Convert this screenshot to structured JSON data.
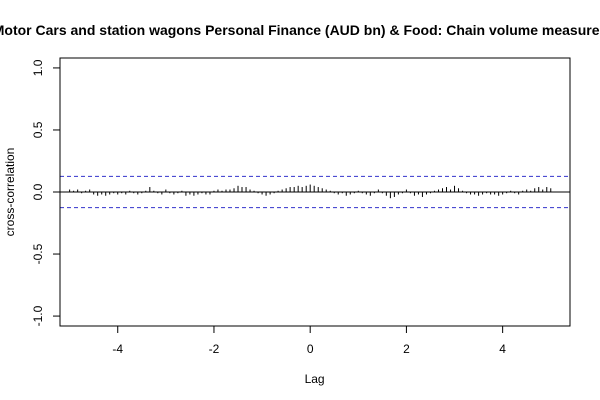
{
  "chart_data": {
    "type": "bar",
    "title": "Motor Cars and station wagons Personal Finance (AUD bn) & Food: Chain volume measures",
    "xlabel": "Lag",
    "ylabel": "cross-correlation",
    "xlim": [
      -5.2,
      5.4
    ],
    "ylim": [
      -1.08,
      1.08
    ],
    "x_ticks": [
      -4,
      -2,
      0,
      2,
      4
    ],
    "x_tick_labels": [
      "-4",
      "-2",
      "0",
      "2",
      "4"
    ],
    "y_ticks": [
      -1.0,
      -0.5,
      0.0,
      0.5,
      1.0
    ],
    "y_tick_labels": [
      "-1.0",
      "-0.5",
      "0.0",
      "0.5",
      "1.0"
    ],
    "confidence_band": 0.126,
    "colors": {
      "bars": "#000000",
      "confidence": "#3333cc",
      "zero_line": "#000000",
      "frame": "#000000"
    },
    "lag_step": 0.0833,
    "series": [
      {
        "x": [
          -5.0,
          -4.917,
          -4.833,
          -4.75,
          -4.667,
          -4.583,
          -4.5,
          -4.417,
          -4.333,
          -4.25,
          -4.167,
          -4.083,
          -4.0,
          -3.917,
          -3.833,
          -3.75,
          -3.667,
          -3.583,
          -3.5,
          -3.417,
          -3.333,
          -3.25,
          -3.167,
          -3.083,
          -3.0,
          -2.917,
          -2.833,
          -2.75,
          -2.667,
          -2.583,
          -2.5,
          -2.417,
          -2.333,
          -2.25,
          -2.167,
          -2.083,
          -2.0,
          -1.917,
          -1.833,
          -1.75,
          -1.667,
          -1.583,
          -1.5,
          -1.417,
          -1.333,
          -1.25,
          -1.167,
          -1.083,
          -1.0,
          -0.917,
          -0.833,
          -0.75,
          -0.667,
          -0.583,
          -0.5,
          -0.417,
          -0.333,
          -0.25,
          -0.167,
          -0.083,
          0.0,
          0.083,
          0.167,
          0.25,
          0.333,
          0.417,
          0.5,
          0.583,
          0.667,
          0.75,
          0.833,
          0.917,
          1.0,
          1.083,
          1.167,
          1.25,
          1.333,
          1.417,
          1.5,
          1.583,
          1.667,
          1.75,
          1.833,
          1.917,
          2.0,
          2.083,
          2.167,
          2.25,
          2.333,
          2.417,
          2.5,
          2.583,
          2.667,
          2.75,
          2.833,
          2.917,
          3.0,
          3.083,
          3.167,
          3.25,
          3.333,
          3.417,
          3.5,
          3.583,
          3.667,
          3.75,
          3.833,
          3.917,
          4.0,
          4.083,
          4.167,
          4.25,
          4.333,
          4.417,
          4.5,
          4.583,
          4.667,
          4.75,
          4.833,
          4.917,
          5.0
        ],
        "values": [
          0.02,
          0.01,
          0.02,
          -0.01,
          0.01,
          0.02,
          -0.02,
          -0.03,
          -0.02,
          -0.03,
          -0.02,
          -0.01,
          -0.02,
          -0.01,
          -0.02,
          0.01,
          -0.01,
          -0.02,
          -0.01,
          0.01,
          0.04,
          0.01,
          -0.01,
          -0.02,
          0.02,
          -0.01,
          -0.02,
          -0.01,
          0.01,
          -0.03,
          -0.02,
          -0.03,
          -0.02,
          -0.01,
          -0.02,
          -0.02,
          0.01,
          0.02,
          0.01,
          0.02,
          0.02,
          0.03,
          0.05,
          0.04,
          0.04,
          0.02,
          0.01,
          -0.01,
          -0.02,
          -0.03,
          -0.02,
          -0.01,
          0.01,
          0.02,
          0.03,
          0.04,
          0.04,
          0.05,
          0.04,
          0.05,
          0.06,
          0.05,
          0.04,
          0.03,
          0.02,
          0.01,
          -0.01,
          -0.02,
          -0.01,
          -0.03,
          -0.02,
          -0.01,
          0.01,
          -0.01,
          -0.02,
          -0.03,
          -0.01,
          0.02,
          -0.01,
          -0.03,
          -0.05,
          -0.04,
          -0.02,
          -0.01,
          0.02,
          -0.01,
          -0.03,
          -0.02,
          -0.04,
          -0.02,
          -0.01,
          0.01,
          0.02,
          0.03,
          0.04,
          0.02,
          0.05,
          0.03,
          0.01,
          -0.01,
          -0.02,
          -0.02,
          -0.03,
          -0.02,
          -0.01,
          -0.02,
          -0.02,
          -0.03,
          -0.02,
          -0.01,
          0.01,
          -0.01,
          -0.02,
          0.01,
          0.02,
          0.01,
          0.03,
          0.04,
          0.02,
          0.04,
          0.03
        ]
      }
    ]
  }
}
